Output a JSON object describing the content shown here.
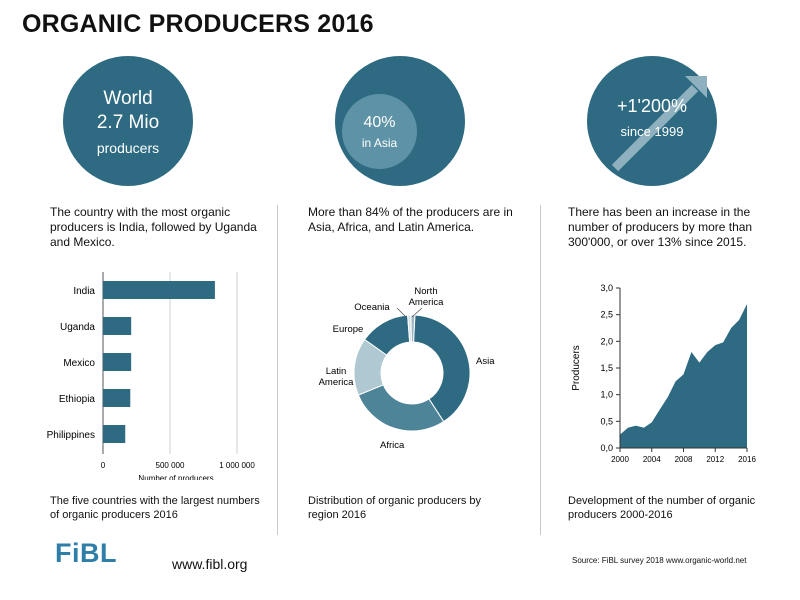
{
  "title": "ORGANIC PRODUCERS 2016",
  "colors": {
    "primary": "#2e6b82",
    "light": "#b0c8d2",
    "mid": "#4d8498"
  },
  "panels": [
    {
      "circle": {
        "line1": "World",
        "line2": "2.7 Mio",
        "line3": "producers"
      },
      "description": "The country with the most organic producers is India, followed by Uganda and Mexico.",
      "caption": "The five countries with the largest numbers of organic producers 2016"
    },
    {
      "circle": {
        "inner_line1": "40%",
        "inner_line2": "in Asia"
      },
      "description": "More than 84% of the producers are in Asia, Africa, and Latin America.",
      "caption": "Distribution of organic producers by region 2016"
    },
    {
      "circle": {
        "line1": "+1'200%",
        "line2": "since 1999"
      },
      "description": "There has been an increase in the number of producers by more than 300'000, or over 13% since 2015.",
      "caption": "Development of the number of organic producers 2000-2016"
    }
  ],
  "footer": {
    "logo": "FiBL",
    "url": "www.fibl.org",
    "source": "Source: FiBL survey 2018  www.organic-world.net"
  },
  "chart_data": [
    {
      "type": "bar",
      "orientation": "horizontal",
      "categories": [
        "India",
        "Uganda",
        "Mexico",
        "Ethiopia",
        "Philippines"
      ],
      "values": [
        835200,
        210352,
        210000,
        203602,
        166001
      ],
      "xlabel": "Number of producers",
      "xlim": [
        0,
        1000000
      ],
      "xticks": [
        "0",
        "500 000",
        "1 000 000"
      ],
      "grid": true
    },
    {
      "type": "pie",
      "donut": true,
      "slices": [
        {
          "label": "Asia",
          "value": 40.0
        },
        {
          "label": "Africa",
          "value": 28.0
        },
        {
          "label": "Latin America",
          "value": 16.0
        },
        {
          "label": "Europe",
          "value": 14.0
        },
        {
          "label": "Oceania",
          "value": 0.9
        },
        {
          "label": "North America",
          "value": 1.1
        }
      ]
    },
    {
      "type": "area",
      "x": [
        2000,
        2001,
        2002,
        2003,
        2004,
        2005,
        2006,
        2007,
        2008,
        2009,
        2010,
        2011,
        2012,
        2013,
        2014,
        2015,
        2016
      ],
      "values": [
        0.25,
        0.38,
        0.42,
        0.38,
        0.48,
        0.72,
        0.95,
        1.25,
        1.38,
        1.8,
        1.6,
        1.8,
        1.93,
        1.98,
        2.25,
        2.4,
        2.7
      ],
      "ylabel": "Producers",
      "ylim": [
        0,
        3.0
      ],
      "yticks": [
        "0,0",
        "0,5",
        "1,0",
        "1,5",
        "2,0",
        "2,5",
        "3,0"
      ],
      "xticks": [
        "2000",
        "2004",
        "2008",
        "2012",
        "2016"
      ],
      "grid": false
    }
  ]
}
